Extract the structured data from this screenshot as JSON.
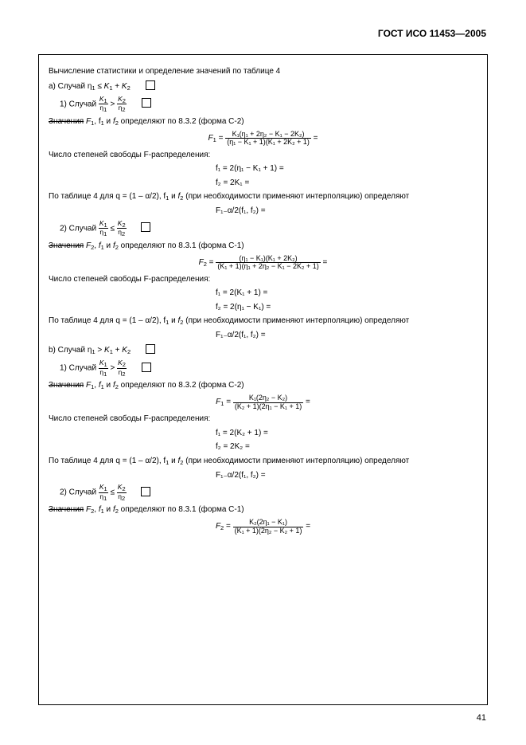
{
  "header": "ГОСТ ИСО 11453—2005",
  "page_number": "41",
  "l1": "Вычисление статистики и определение значений по таблице 4",
  "l2_pre": "a) Случай η",
  "l2_mid": " ≤ ",
  "l3_pre": "1) Случай ",
  "znach": "Значения",
  "l4_rest": ", f",
  "l4_end": " определяют по 8.3.2 (форма C-2)",
  "l5": "Число степеней свободы F-распределения:",
  "l6_a": "По таблице 4 для q = (1 – α/2), f",
  "l6_b": " (при необходимости применяют интерполяцию) определяют",
  "l7_pre": "2) Случай ",
  "l8_end": " определяют по 8.3.1 (форма C-1)",
  "lb_pre": "b) Случай η",
  "lb_mid": " > ",
  "f1_label": "F",
  "f2_label": "F",
  "f1_num": "K₁(η₁ + 2η₂ − K₁ − 2K₂)",
  "f1_den": "(η₁ − K₁ + 1)(K₁ + 2K₂ + 1)",
  "f1a": "f₁ = 2(η₁ − K₁ + 1) =",
  "f1b": "f₂ = 2K₁ =",
  "f1c": "F₁₋α/2(f₁, f₂) =",
  "f2_num": "(η₁ − K₁)(K₁ + 2K₂)",
  "f2_den": "(K₁ + 1)(η₁ + 2η₂ − K₁ − 2K₂ + 1)",
  "f2a": "f₁ = 2(K₁ + 1) =",
  "f2b": "f₂ = 2(η₁ − K₁) =",
  "fb1_num": "K₁(2η₂ − K₂)",
  "fb1_den": "(K₂ + 1)(2η₁ − K₁ + 1)",
  "fb1a": "f₁ = 2(K₂ + 1) =",
  "fb1b": "f₂ = 2K₂ =",
  "fb2_num": "K₂(2η₁ − K₁)",
  "fb2_den": "(K₁ + 1)(2η₂ − K₂ + 1)"
}
